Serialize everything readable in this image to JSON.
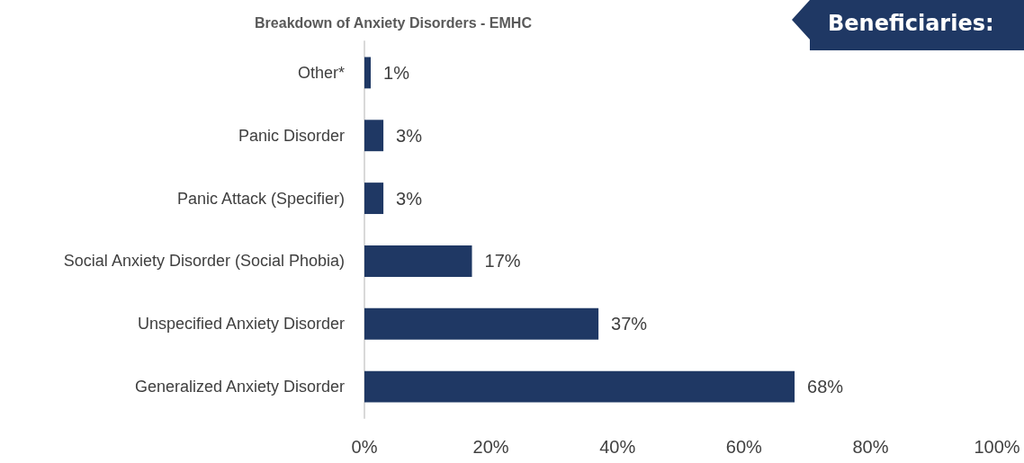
{
  "chart_data": {
    "type": "bar",
    "orientation": "horizontal",
    "title": "Breakdown of Anxiety Disorders - EMHC",
    "categories": [
      "Other*",
      "Panic Disorder",
      "Panic Attack (Specifier)",
      "Social Anxiety Disorder (Social Phobia)",
      "Unspecified Anxiety Disorder",
      "Generalized Anxiety Disorder"
    ],
    "values": [
      1,
      3,
      3,
      17,
      37,
      68
    ],
    "value_labels": [
      "1%",
      "3%",
      "3%",
      "17%",
      "37%",
      "68%"
    ],
    "color": "#1f3864",
    "xlim": [
      0,
      100
    ],
    "xticks": [
      {
        "value": 0,
        "label": "0%"
      },
      {
        "value": 20,
        "label": "20%"
      },
      {
        "value": 40,
        "label": "40%"
      },
      {
        "value": 60,
        "label": "60%"
      },
      {
        "value": 80,
        "label": "80%"
      },
      {
        "value": 100,
        "label": "100%"
      }
    ],
    "grid": false,
    "annotations": [
      "Beneficiaries:"
    ]
  }
}
